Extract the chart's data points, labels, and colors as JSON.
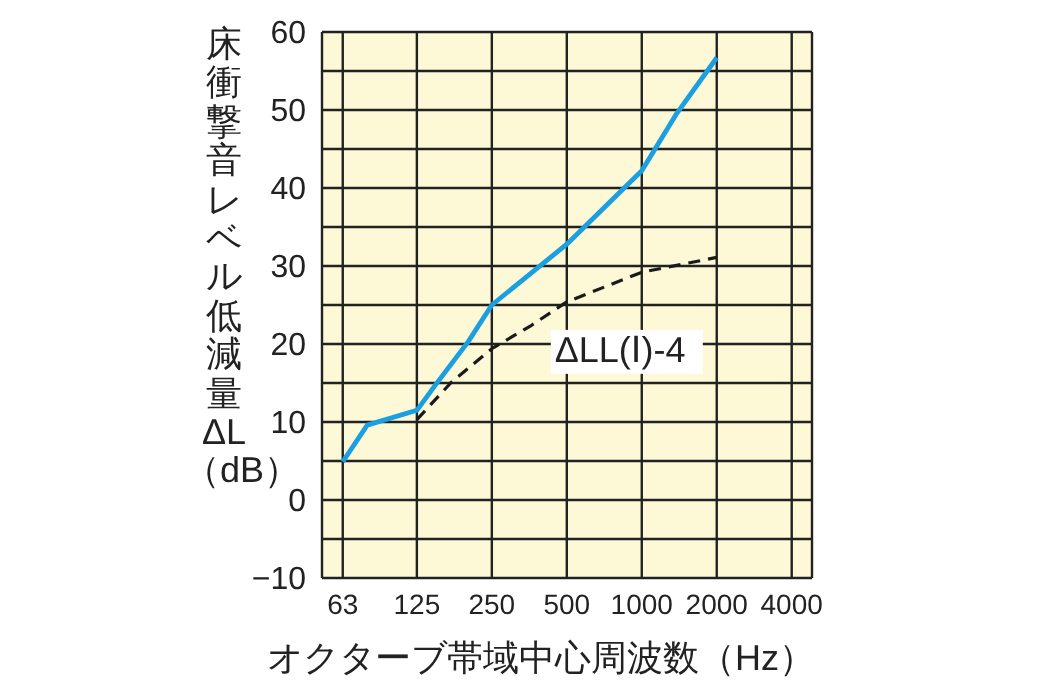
{
  "chart_data": {
    "type": "line",
    "xlabel": "オクターブ帯域中心周波数（Hz）",
    "ylabel": "床衝撃音レベル低減量ΔL（dB）",
    "log": "x",
    "xlim": [
      52,
      4825
    ],
    "xticks": [
      63,
      125,
      250,
      500,
      1000,
      2000,
      4000
    ],
    "ylim": [
      -10,
      60
    ],
    "yticks": [
      {
        "value": -10,
        "label": "−10"
      },
      {
        "value": -5,
        "label": null
      },
      0,
      {
        "value": 5,
        "label": null
      },
      10,
      {
        "value": 15,
        "label": null
      },
      20,
      {
        "value": 25,
        "label": null
      },
      30,
      {
        "value": 35,
        "label": null
      },
      40,
      {
        "value": 45,
        "label": null
      },
      50,
      {
        "value": 55,
        "label": null
      },
      60
    ],
    "grid": true,
    "marker": "none",
    "series": [
      {
        "color": "#1a9fe0",
        "line_style": "solid",
        "x": [
          63,
          79,
          125,
          148,
          201,
          250,
          500,
          1000,
          1385,
          2000
        ],
        "values": [
          4.9,
          9.6,
          11.5,
          14.7,
          20.3,
          25,
          32.8,
          42.2,
          49.6,
          56.7
        ]
      },
      {
        "name": "ΔLL(Ⅰ)-4",
        "color": "#1a1a1a",
        "line_style": "dashed",
        "x": [
          125,
          172,
          250,
          361,
          500,
          1000,
          2000
        ],
        "values": [
          10.3,
          15.1,
          19.4,
          22.4,
          25.4,
          29.2,
          31.1
        ]
      }
    ]
  }
}
